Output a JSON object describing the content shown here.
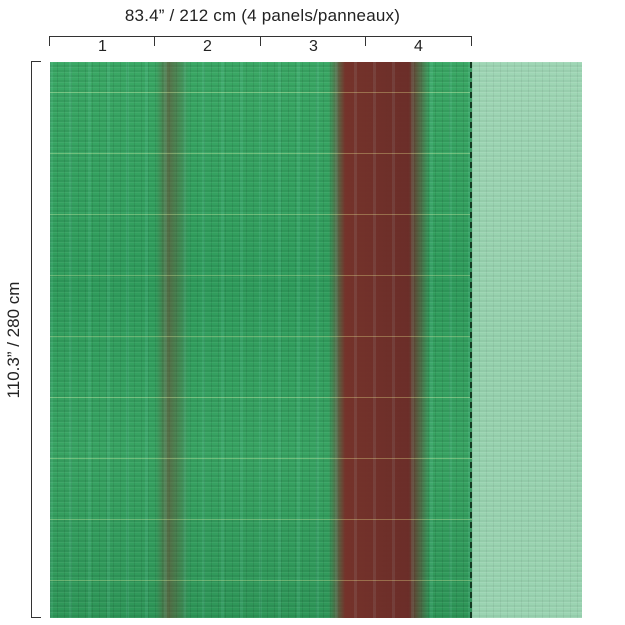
{
  "dimensions": {
    "width_label": "83.4” / 212 cm (4 panels/panneaux)",
    "height_label": "110.3” / 280 cm"
  },
  "panels": [
    {
      "number": "1"
    },
    {
      "number": "2"
    },
    {
      "number": "3"
    },
    {
      "number": "4"
    }
  ],
  "colors": {
    "mural_green": "#35a25f",
    "mural_red_brown": "#7a2f2a",
    "extension_light_green": "#9bd4b2",
    "divider_dashed": "#143a22"
  }
}
